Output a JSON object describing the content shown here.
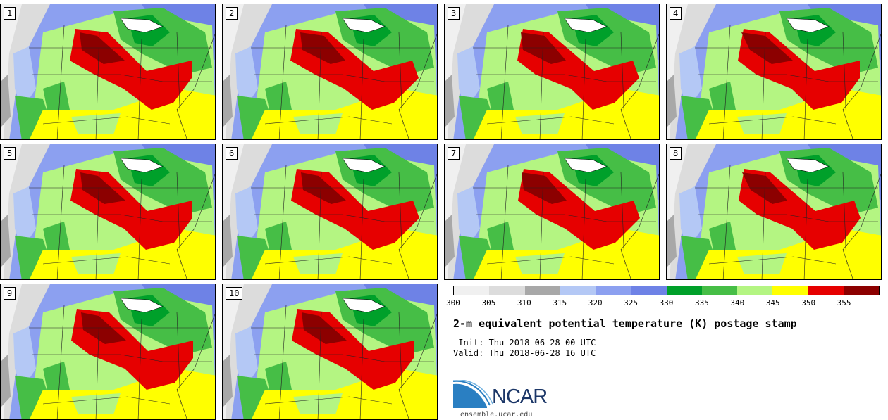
{
  "panels": [
    {
      "label": "1"
    },
    {
      "label": "2"
    },
    {
      "label": "3"
    },
    {
      "label": "4"
    },
    {
      "label": "5"
    },
    {
      "label": "6"
    },
    {
      "label": "7"
    },
    {
      "label": "8"
    },
    {
      "label": "9"
    },
    {
      "label": "10"
    }
  ],
  "colorbar": {
    "colors": [
      "#f0f0f0",
      "#dcdcdc",
      "#a8a8a8",
      "#b4c8f5",
      "#8ca0f0",
      "#6e82e6",
      "#00a02a",
      "#46be46",
      "#b4f582",
      "#ffff00",
      "#e60000",
      "#8c0000"
    ],
    "ticks": [
      "300",
      "305",
      "310",
      "315",
      "320",
      "325",
      "330",
      "335",
      "340",
      "345",
      "350",
      "355"
    ]
  },
  "title": "2-m equivalent potential temperature (K) postage stamp",
  "init": " Init: Thu 2018-06-28 00 UTC",
  "valid": "Valid: Thu 2018-06-28 16 UTC",
  "logo": {
    "text": "NCAR",
    "url": "ensemble.ucar.edu"
  }
}
